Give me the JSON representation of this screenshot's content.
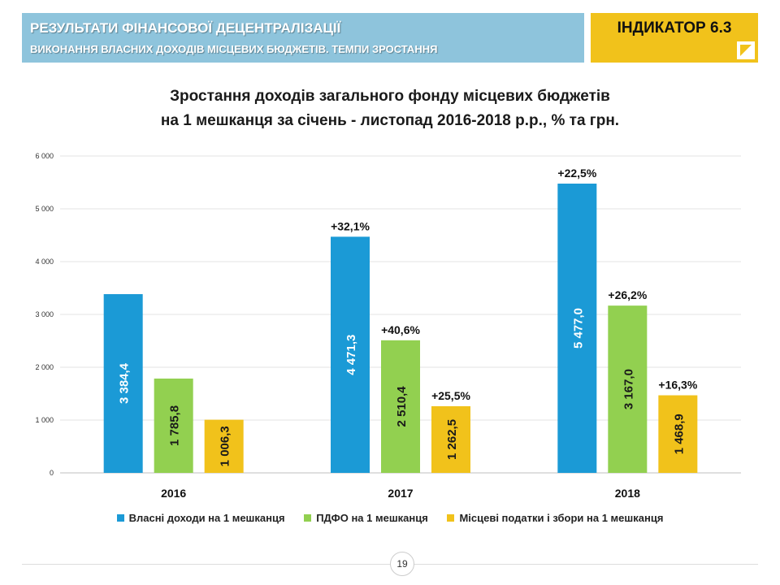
{
  "header": {
    "title": "РЕЗУЛЬТАТИ ФІНАНСОВОЇ ДЕЦЕНТРАЛІЗАЦІЇ",
    "subtitle": "ВИКОНАННЯ ВЛАСНИХ ДОХОДІВ МІСЦЕВИХ БЮДЖЕТІВ. ТЕМПИ ЗРОСТАННЯ",
    "indicator": "ІНДИКАТОР 6.3"
  },
  "colors": {
    "header_bg": "#8ec4dc",
    "indicator_bg": "#f1c21b",
    "series": [
      "#1b9ad6",
      "#92d050",
      "#f1c21b"
    ]
  },
  "page_number": "19",
  "chart_data": {
    "type": "bar",
    "title_line1": "Зростання доходів загального фонду місцевих бюджетів",
    "title_line2": "на 1 мешканця за січень - листопад 2016-2018 р.р., % та грн.",
    "categories": [
      "2016",
      "2017",
      "2018"
    ],
    "ylim": [
      0,
      6000
    ],
    "yticks": [
      0,
      1000,
      2000,
      3000,
      4000,
      5000,
      6000
    ],
    "ytick_labels": [
      "0",
      "1 000",
      "2 000",
      "3 000",
      "4 000",
      "5 000",
      "6 000"
    ],
    "grid": true,
    "legend_position": "bottom",
    "series": [
      {
        "name": "Власні доходи на 1 мешканця",
        "values": [
          3384.4,
          4471.3,
          5477.0
        ],
        "value_labels": [
          "3 384,4",
          "4 471,3",
          "5 477,0"
        ],
        "growth_labels": [
          "",
          "+32,1%",
          "+22,5%"
        ]
      },
      {
        "name": "ПДФО на 1 мешканця",
        "values": [
          1785.8,
          2510.4,
          3167.0
        ],
        "value_labels": [
          "1 785,8",
          "2 510,4",
          "3 167,0"
        ],
        "growth_labels": [
          "",
          "+40,6%",
          "+26,2%"
        ]
      },
      {
        "name": "Місцеві податки і збори на 1 мешканця",
        "values": [
          1006.3,
          1262.5,
          1468.9
        ],
        "value_labels": [
          "1 006,3",
          "1 262,5",
          "1 468,9"
        ],
        "growth_labels": [
          "",
          "+25,5%",
          "+16,3%"
        ]
      }
    ]
  }
}
